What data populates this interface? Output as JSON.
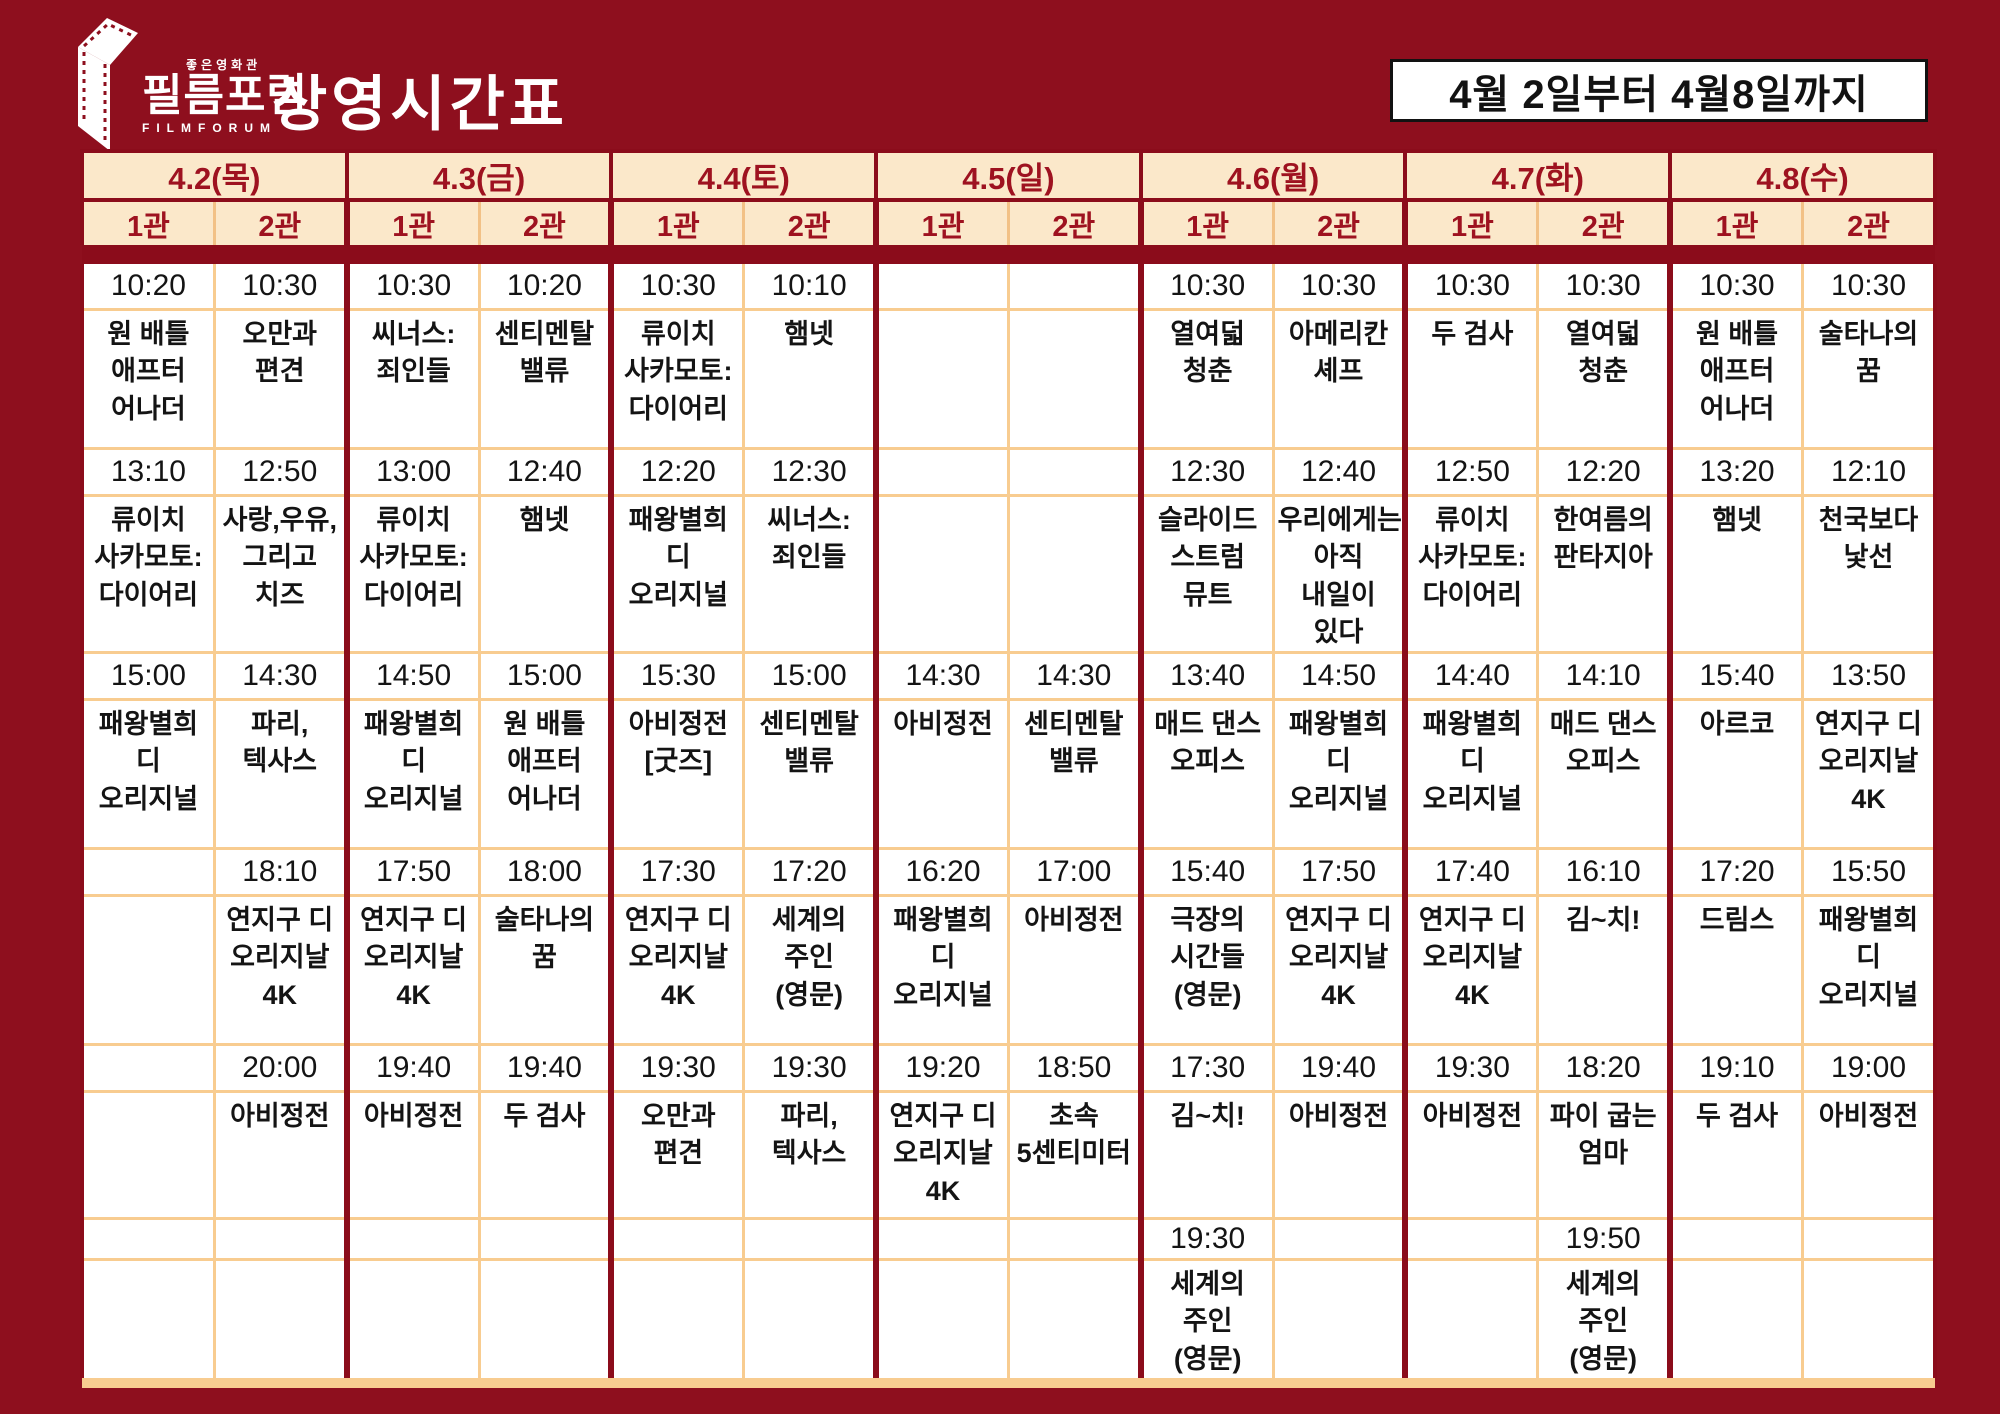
{
  "brand": {
    "tagline": "좋은영화관",
    "name": "필름포럼",
    "name_en": "FILMFORUM"
  },
  "header": {
    "title": "상영시간표",
    "period": "4월 2일부터 4월8일까지"
  },
  "colors": {
    "background": "#8E0F1E",
    "header_cell": "#FBE8CA",
    "header_text": "#9E1220",
    "grid_orange": "#F8CC90",
    "date_box_bg": "#FFFFFF",
    "date_box_text": "#121212"
  },
  "icons": {
    "logo_icon": "film-box-icon"
  },
  "schedule": {
    "days": [
      {
        "date": "4.2(목)",
        "screens": [
          {
            "name": "1관",
            "slots": [
              {
                "time": "10:20",
                "title": "원 배틀 애프터 어나더"
              },
              {
                "time": "13:10",
                "title": "류이치 사카모토: 다이어리"
              },
              {
                "time": "15:00",
                "title": "패왕별희 디 오리지널"
              },
              null,
              null,
              null
            ]
          },
          {
            "name": "2관",
            "slots": [
              {
                "time": "10:30",
                "title": "오만과 편견"
              },
              {
                "time": "12:50",
                "title": "사랑,우유, 그리고 치즈"
              },
              {
                "time": "14:30",
                "title": "파리, 텍사스"
              },
              {
                "time": "18:10",
                "title": "연지구 디 오리지날 4K"
              },
              {
                "time": "20:00",
                "title": "아비정전"
              },
              null
            ]
          }
        ]
      },
      {
        "date": "4.3(금)",
        "screens": [
          {
            "name": "1관",
            "slots": [
              {
                "time": "10:30",
                "title": "씨너스: 죄인들"
              },
              {
                "time": "13:00",
                "title": "류이치 사카모토: 다이어리"
              },
              {
                "time": "14:50",
                "title": "패왕별희 디 오리지널"
              },
              {
                "time": "17:50",
                "title": "연지구 디 오리지날 4K"
              },
              {
                "time": "19:40",
                "title": "아비정전"
              },
              null
            ]
          },
          {
            "name": "2관",
            "slots": [
              {
                "time": "10:20",
                "title": "센티멘탈 밸류"
              },
              {
                "time": "12:40",
                "title": "햄넷"
              },
              {
                "time": "15:00",
                "title": "원 배틀 애프터 어나더"
              },
              {
                "time": "18:00",
                "title": "술타나의 꿈"
              },
              {
                "time": "19:40",
                "title": "두 검사"
              },
              null
            ]
          }
        ]
      },
      {
        "date": "4.4(토)",
        "screens": [
          {
            "name": "1관",
            "slots": [
              {
                "time": "10:30",
                "title": "류이치 사카모토: 다이어리"
              },
              {
                "time": "12:20",
                "title": "패왕별희 디 오리지널"
              },
              {
                "time": "15:30",
                "title": "아비정전 [굿즈]"
              },
              {
                "time": "17:30",
                "title": "연지구 디 오리지날 4K"
              },
              {
                "time": "19:30",
                "title": "오만과 편견"
              },
              null
            ]
          },
          {
            "name": "2관",
            "slots": [
              {
                "time": "10:10",
                "title": "햄넷"
              },
              {
                "time": "12:30",
                "title": "씨너스: 죄인들"
              },
              {
                "time": "15:00",
                "title": "센티멘탈 밸류"
              },
              {
                "time": "17:20",
                "title": "세계의 주인 (영문)"
              },
              {
                "time": "19:30",
                "title": "파리, 텍사스"
              },
              null
            ]
          }
        ]
      },
      {
        "date": "4.5(일)",
        "screens": [
          {
            "name": "1관",
            "slots": [
              null,
              null,
              {
                "time": "14:30",
                "title": "아비정전"
              },
              {
                "time": "16:20",
                "title": "패왕별희 디 오리지널"
              },
              {
                "time": "19:20",
                "title": "연지구 디 오리지날 4K"
              },
              null
            ]
          },
          {
            "name": "2관",
            "slots": [
              null,
              null,
              {
                "time": "14:30",
                "title": "센티멘탈 밸류"
              },
              {
                "time": "17:00",
                "title": "아비정전"
              },
              {
                "time": "18:50",
                "title": "초속 5센티미터"
              },
              null
            ]
          }
        ]
      },
      {
        "date": "4.6(월)",
        "screens": [
          {
            "name": "1관",
            "slots": [
              {
                "time": "10:30",
                "title": "열여덟 청춘"
              },
              {
                "time": "12:30",
                "title": "슬라이드 스트럼 뮤트"
              },
              {
                "time": "13:40",
                "title": "매드 댄스 오피스"
              },
              {
                "time": "15:40",
                "title": "극장의 시간들 (영문)"
              },
              {
                "time": "17:30",
                "title": "김~치!"
              },
              {
                "time": "19:30",
                "title": "세계의 주인 (영문)"
              }
            ]
          },
          {
            "name": "2관",
            "slots": [
              {
                "time": "10:30",
                "title": "아메리칸 셰프"
              },
              {
                "time": "12:40",
                "title": "우리에게는 아직 내일이 있다"
              },
              {
                "time": "14:50",
                "title": "패왕별희 디 오리지널"
              },
              {
                "time": "17:50",
                "title": "연지구 디 오리지날 4K"
              },
              {
                "time": "19:40",
                "title": "아비정전"
              },
              null
            ]
          }
        ]
      },
      {
        "date": "4.7(화)",
        "screens": [
          {
            "name": "1관",
            "slots": [
              {
                "time": "10:30",
                "title": "두 검사"
              },
              {
                "time": "12:50",
                "title": "류이치 사카모토: 다이어리"
              },
              {
                "time": "14:40",
                "title": "패왕별희 디 오리지널"
              },
              {
                "time": "17:40",
                "title": "연지구 디 오리지날 4K"
              },
              {
                "time": "19:30",
                "title": "아비정전"
              },
              null
            ]
          },
          {
            "name": "2관",
            "slots": [
              {
                "time": "10:30",
                "title": "열여덟 청춘"
              },
              {
                "time": "12:20",
                "title": "한여름의 판타지아"
              },
              {
                "time": "14:10",
                "title": "매드 댄스 오피스"
              },
              {
                "time": "16:10",
                "title": "김~치!"
              },
              {
                "time": "18:20",
                "title": "파이 굽는 엄마"
              },
              {
                "time": "19:50",
                "title": "세계의 주인 (영문)"
              }
            ]
          }
        ]
      },
      {
        "date": "4.8(수)",
        "screens": [
          {
            "name": "1관",
            "slots": [
              {
                "time": "10:30",
                "title": "원 배틀 애프터 어나더"
              },
              {
                "time": "13:20",
                "title": "햄넷"
              },
              {
                "time": "15:40",
                "title": "아르코"
              },
              {
                "time": "17:20",
                "title": "드림스"
              },
              {
                "time": "19:10",
                "title": "두 검사"
              },
              null
            ]
          },
          {
            "name": "2관",
            "slots": [
              {
                "time": "10:30",
                "title": "술타나의 꿈"
              },
              {
                "time": "12:10",
                "title": "천국보다 낯선"
              },
              {
                "time": "13:50",
                "title": "연지구 디 오리지날 4K"
              },
              {
                "time": "15:50",
                "title": "패왕별희 디 오리지널"
              },
              {
                "time": "19:00",
                "title": "아비정전"
              },
              null
            ]
          }
        ]
      }
    ]
  }
}
